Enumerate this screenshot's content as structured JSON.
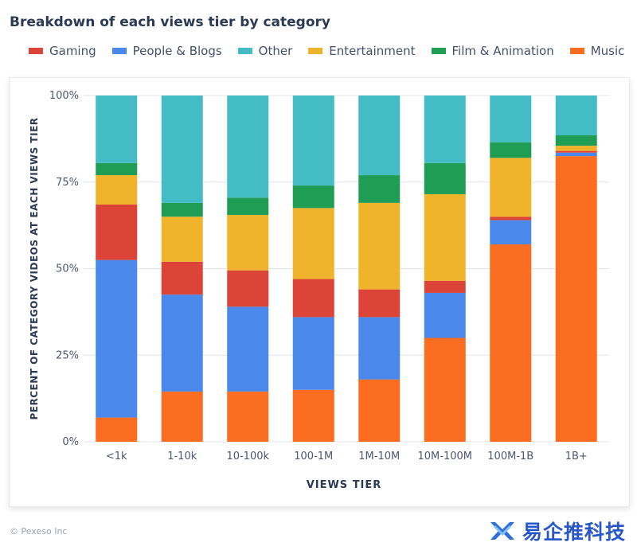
{
  "header": {
    "title": "Breakdown of each views tier by category"
  },
  "legend": [
    {
      "name": "Gaming",
      "color": "#dc4437"
    },
    {
      "name": "People & Blogs",
      "color": "#4a88ec"
    },
    {
      "name": "Other",
      "color": "#44bcc6"
    },
    {
      "name": "Entertainment",
      "color": "#f0b42c"
    },
    {
      "name": "Film & Animation",
      "color": "#1f9d55"
    },
    {
      "name": "Music",
      "color": "#fb6d21"
    }
  ],
  "chart_data": {
    "type": "bar",
    "stacked": true,
    "xlabel": "VIEWS TIER",
    "ylabel": "PERCENT OF CATEGORY VIDEOS AT EACH VIEWS TIER",
    "ylim": [
      0,
      100
    ],
    "yticks": [
      "0%",
      "25%",
      "50%",
      "75%",
      "100%"
    ],
    "categories": [
      "<1k",
      "1-10k",
      "10-100k",
      "100-1M",
      "1M-10M",
      "10M-100M",
      "100M-1B",
      "1B+"
    ],
    "series": [
      {
        "name": "Music",
        "color": "#fb6d21",
        "values": [
          7,
          14.5,
          14.5,
          15,
          18,
          30,
          57,
          82.5
        ]
      },
      {
        "name": "People & Blogs",
        "color": "#4a88ec",
        "values": [
          45.5,
          28,
          24.5,
          21,
          18,
          13,
          7,
          1
        ]
      },
      {
        "name": "Gaming",
        "color": "#dc4437",
        "values": [
          16,
          9.5,
          10.5,
          11,
          8,
          3.5,
          1,
          0.5
        ]
      },
      {
        "name": "Entertainment",
        "color": "#f0b42c",
        "values": [
          8.5,
          13,
          16,
          20.5,
          25,
          25,
          17,
          1.5
        ]
      },
      {
        "name": "Film & Animation",
        "color": "#1f9d55",
        "values": [
          3.5,
          4,
          5,
          6.5,
          8,
          9,
          4.5,
          3
        ]
      },
      {
        "name": "Other",
        "color": "#44bcc6",
        "values": [
          19.5,
          31,
          29.5,
          26,
          23,
          19.5,
          13.5,
          11.5
        ]
      }
    ],
    "grid": true,
    "legend_position": "top-left"
  },
  "footer": {
    "copyright": "© Pexeso Inc"
  },
  "watermark": {
    "text": "易企推科技"
  }
}
